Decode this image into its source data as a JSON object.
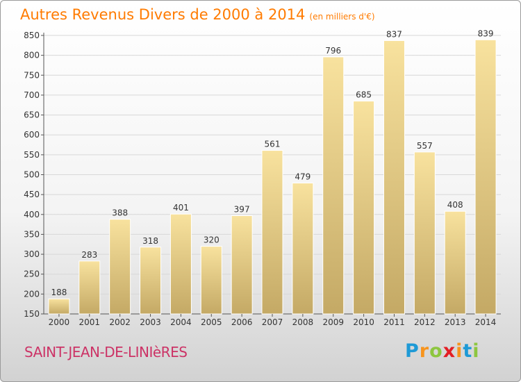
{
  "title": "Autres Revenus Divers de 2000 à 2014",
  "unit": "(en milliers d'€)",
  "commune": "SAINT-JEAN-DE-LINIèRES",
  "logo": {
    "letters": [
      "P",
      "r",
      "o",
      "x",
      "i",
      "t",
      "i"
    ],
    "colors": [
      "#1e9ad6",
      "#f7941d",
      "#8dc63f",
      "#e31e24",
      "#f7941d",
      "#1e9ad6",
      "#8dc63f"
    ]
  },
  "colors": {
    "bar_top": "#f8e29e",
    "bar_bottom": "#c4a965",
    "title": "#ff7b00",
    "commune": "#cc3366"
  },
  "chart_data": {
    "type": "bar",
    "categories": [
      "2000",
      "2001",
      "2002",
      "2003",
      "2004",
      "2005",
      "2006",
      "2007",
      "2008",
      "2009",
      "2010",
      "2011",
      "2012",
      "2013",
      "2014"
    ],
    "values": [
      188,
      283,
      388,
      318,
      401,
      320,
      397,
      561,
      479,
      796,
      685,
      837,
      557,
      408,
      839
    ],
    "ylim": [
      150,
      850
    ],
    "yticks": [
      150,
      200,
      250,
      300,
      350,
      400,
      450,
      500,
      550,
      600,
      650,
      700,
      750,
      800,
      850
    ],
    "grid": true
  }
}
